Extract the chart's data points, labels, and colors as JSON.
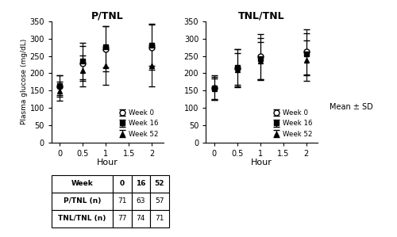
{
  "hours": [
    0,
    0.5,
    1,
    2
  ],
  "ptnl": {
    "week0": {
      "mean": [
        163,
        228,
        270,
        275
      ],
      "sd": [
        30,
        50,
        65,
        65
      ]
    },
    "week16": {
      "mean": [
        165,
        235,
        277,
        282
      ],
      "sd": [
        28,
        52,
        60,
        60
      ]
    },
    "week52": {
      "mean": [
        148,
        207,
        222,
        222
      ],
      "sd": [
        28,
        45,
        55,
        60
      ]
    }
  },
  "tnltnl": {
    "week0": {
      "mean": [
        158,
        215,
        248,
        262
      ],
      "sd": [
        35,
        55,
        65,
        65
      ]
    },
    "week16": {
      "mean": [
        157,
        218,
        242,
        255
      ],
      "sd": [
        33,
        52,
        60,
        60
      ]
    },
    "week52": {
      "mean": [
        155,
        210,
        235,
        237
      ],
      "sd": [
        30,
        48,
        55,
        58
      ]
    }
  },
  "title_left": "P/TNL",
  "title_right": "TNL/TNL",
  "ylabel": "Plasma glucose (mg/dL)",
  "xlabel": "Hour",
  "ylim": [
    0,
    350
  ],
  "yticks": [
    0,
    50,
    100,
    150,
    200,
    250,
    300,
    350
  ],
  "xticks": [
    0,
    0.5,
    1,
    1.5,
    2
  ],
  "xticklabels": [
    "0",
    "0.5",
    "1",
    "1.5",
    "2"
  ],
  "legend_labels": [
    "Week 0",
    "Week 16",
    "Week 52"
  ],
  "mean_sd_label": "Mean ± SD",
  "table_data": [
    [
      "Week",
      "0",
      "16",
      "52"
    ],
    [
      "P/TNL (n)",
      "71",
      "63",
      "57"
    ],
    [
      "TNL/TNL (n)",
      "77",
      "74",
      "71"
    ]
  ],
  "markers": [
    "o",
    "s",
    "^"
  ],
  "mfc": [
    "white",
    "black",
    "black"
  ],
  "capsize": 3,
  "elinewidth": 0.8,
  "linewidth": 1.2,
  "markersize": 5
}
